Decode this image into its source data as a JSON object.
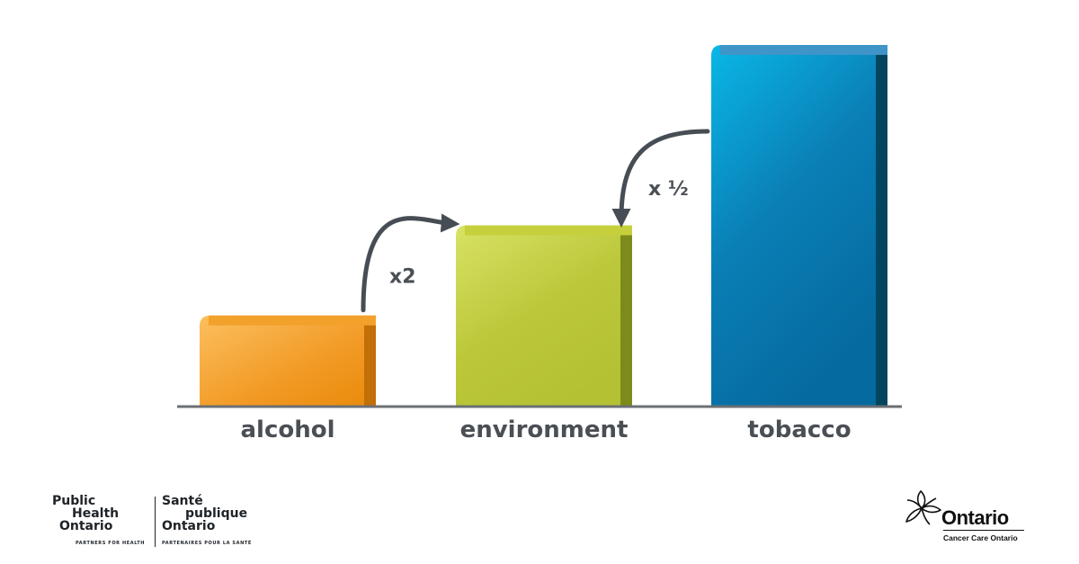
{
  "chart_data": {
    "type": "bar",
    "categories": [
      "alcohol",
      "environment",
      "tobacco"
    ],
    "values": [
      1,
      2,
      4
    ],
    "ylim": [
      0,
      4.15
    ],
    "grid": false,
    "legend": "none",
    "colors": [
      "#ee8c10",
      "#b7c63a",
      "#0a6fa5"
    ],
    "annotations": [
      {
        "text": "x2",
        "from": "alcohol",
        "to": "environment"
      },
      {
        "text": "x ½",
        "from": "tobacco",
        "to": "environment"
      }
    ]
  },
  "logos": {
    "pho": {
      "en_line1": "Public",
      "en_line2": "Health",
      "en_line3": "Ontario",
      "en_tagline": "PARTNERS FOR HEALTH",
      "fr_line1": "Santé",
      "fr_line2": "publique",
      "fr_line3": "Ontario",
      "fr_tagline": "PARTENAIRES POUR LA SANTÉ"
    },
    "ontario": {
      "wordmark": "Ontario",
      "subtitle": "Cancer Care Ontario"
    }
  }
}
